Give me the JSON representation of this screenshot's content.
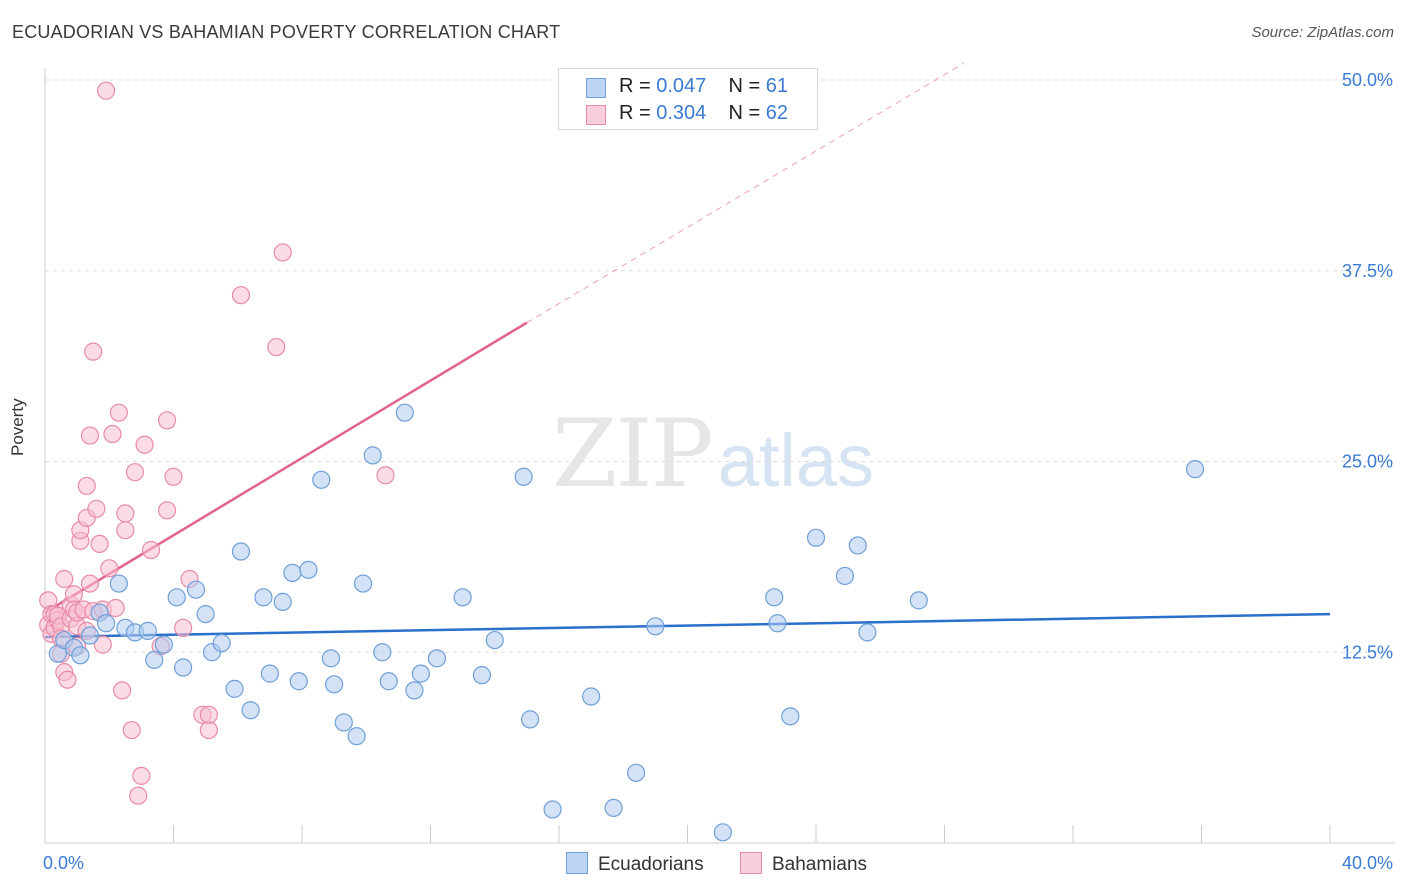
{
  "title": "ECUADORIAN VS BAHAMIAN POVERTY CORRELATION CHART",
  "source": "Source: ZipAtlas.com",
  "watermark": {
    "part1": "ZIP",
    "part2": "atlas"
  },
  "legend": [
    {
      "r_label": "R =",
      "r_value": "0.047",
      "n_label": "N =",
      "n_value": "61"
    },
    {
      "r_label": "R =",
      "r_value": "0.304",
      "n_label": "N =",
      "n_value": "62"
    }
  ],
  "bottom_legend": {
    "series1": "Ecuadorians",
    "series2": "Bahamians"
  },
  "colors": {
    "blue_fill": "#aecbf0",
    "blue_stroke": "#6f9fd8",
    "blue_line": "#2a6fc9",
    "pink_fill": "#f8c0d0",
    "pink_stroke": "#e88aa8",
    "pink_line": "#e2638d",
    "tick_text": "#3a7bd5",
    "grid": "#dddddd"
  },
  "chart_data": {
    "type": "scatter",
    "title": "ECUADORIAN VS BAHAMIAN POVERTY CORRELATION CHART",
    "xlabel": "",
    "ylabel": "Poverty",
    "xlim": [
      0,
      40
    ],
    "ylim": [
      0,
      50
    ],
    "x_tick_labels": [
      "0.0%",
      "40.0%"
    ],
    "y_ticks": [
      12.5,
      25.0,
      37.5,
      50.0
    ],
    "y_tick_labels": [
      "12.5%",
      "25.0%",
      "37.5%",
      "50.0%"
    ],
    "series": [
      {
        "name": "Ecuadorians",
        "r": 0.047,
        "n": 61,
        "trend": {
          "x": [
            0,
            40
          ],
          "y": [
            13.5,
            15.0
          ],
          "dashed_extension": false
        },
        "points": [
          [
            0.4,
            12.4
          ],
          [
            0.6,
            13.3
          ],
          [
            0.9,
            12.8
          ],
          [
            1.1,
            12.3
          ],
          [
            1.4,
            13.6
          ],
          [
            1.7,
            15.1
          ],
          [
            1.9,
            14.4
          ],
          [
            2.3,
            17.0
          ],
          [
            2.5,
            14.1
          ],
          [
            2.8,
            13.8
          ],
          [
            3.2,
            13.9
          ],
          [
            3.4,
            12.0
          ],
          [
            3.7,
            13.0
          ],
          [
            4.1,
            16.1
          ],
          [
            4.3,
            11.5
          ],
          [
            4.7,
            16.6
          ],
          [
            5.0,
            15.0
          ],
          [
            5.2,
            12.5
          ],
          [
            5.5,
            13.1
          ],
          [
            5.9,
            10.1
          ],
          [
            6.1,
            19.1
          ],
          [
            6.4,
            8.7
          ],
          [
            6.8,
            16.1
          ],
          [
            7.0,
            11.1
          ],
          [
            7.4,
            15.8
          ],
          [
            7.7,
            17.7
          ],
          [
            7.9,
            10.6
          ],
          [
            8.2,
            17.9
          ],
          [
            8.6,
            23.8
          ],
          [
            8.9,
            12.1
          ],
          [
            9.0,
            10.4
          ],
          [
            9.3,
            7.9
          ],
          [
            9.7,
            7.0
          ],
          [
            9.9,
            17.0
          ],
          [
            10.2,
            25.4
          ],
          [
            10.5,
            12.5
          ],
          [
            10.7,
            10.6
          ],
          [
            11.2,
            28.2
          ],
          [
            11.5,
            10.0
          ],
          [
            11.7,
            11.1
          ],
          [
            12.2,
            12.1
          ],
          [
            13.0,
            16.1
          ],
          [
            13.6,
            11.0
          ],
          [
            14.0,
            13.3
          ],
          [
            14.9,
            24.0
          ],
          [
            15.1,
            8.1
          ],
          [
            15.8,
            2.2
          ],
          [
            17.0,
            9.6
          ],
          [
            17.7,
            2.3
          ],
          [
            18.4,
            4.6
          ],
          [
            19.0,
            14.2
          ],
          [
            21.1,
            0.7
          ],
          [
            22.7,
            16.1
          ],
          [
            22.8,
            14.4
          ],
          [
            23.2,
            8.3
          ],
          [
            24.0,
            20.0
          ],
          [
            24.9,
            17.5
          ],
          [
            25.3,
            19.5
          ],
          [
            25.6,
            13.8
          ],
          [
            27.2,
            15.9
          ],
          [
            35.8,
            24.5
          ]
        ]
      },
      {
        "name": "Bahamians",
        "r": 0.304,
        "n": 62,
        "trend": {
          "x": [
            0,
            15
          ],
          "y": [
            15.1,
            34.1
          ],
          "dashed_extension": true,
          "dashed_to": {
            "x": 28.6,
            "y": 51.1
          }
        },
        "points": [
          [
            0.1,
            14.3
          ],
          [
            0.1,
            15.9
          ],
          [
            0.2,
            15.0
          ],
          [
            0.2,
            13.7
          ],
          [
            0.3,
            14.1
          ],
          [
            0.3,
            15.0
          ],
          [
            0.4,
            14.6
          ],
          [
            0.4,
            14.9
          ],
          [
            0.5,
            14.2
          ],
          [
            0.5,
            13.4
          ],
          [
            0.5,
            12.4
          ],
          [
            0.6,
            17.3
          ],
          [
            0.6,
            11.2
          ],
          [
            0.7,
            10.7
          ],
          [
            0.8,
            15.6
          ],
          [
            0.8,
            14.7
          ],
          [
            0.9,
            16.3
          ],
          [
            0.9,
            15.3
          ],
          [
            1.0,
            14.2
          ],
          [
            1.0,
            15.1
          ],
          [
            1.0,
            12.9
          ],
          [
            1.1,
            19.8
          ],
          [
            1.1,
            20.5
          ],
          [
            1.2,
            15.3
          ],
          [
            1.3,
            13.9
          ],
          [
            1.3,
            21.3
          ],
          [
            1.3,
            23.4
          ],
          [
            1.4,
            26.7
          ],
          [
            1.4,
            17.0
          ],
          [
            1.5,
            32.2
          ],
          [
            1.5,
            15.2
          ],
          [
            1.6,
            21.9
          ],
          [
            1.7,
            19.6
          ],
          [
            1.8,
            13.0
          ],
          [
            1.8,
            15.3
          ],
          [
            1.9,
            49.3
          ],
          [
            2.0,
            18.0
          ],
          [
            2.1,
            26.8
          ],
          [
            2.2,
            15.4
          ],
          [
            2.3,
            28.2
          ],
          [
            2.4,
            10.0
          ],
          [
            2.5,
            21.6
          ],
          [
            2.5,
            20.5
          ],
          [
            2.7,
            7.4
          ],
          [
            2.8,
            24.3
          ],
          [
            2.9,
            3.1
          ],
          [
            3.0,
            4.4
          ],
          [
            3.1,
            26.1
          ],
          [
            3.3,
            19.2
          ],
          [
            3.6,
            12.9
          ],
          [
            3.8,
            27.7
          ],
          [
            3.8,
            21.8
          ],
          [
            4.0,
            24.0
          ],
          [
            4.3,
            14.1
          ],
          [
            4.5,
            17.3
          ],
          [
            4.9,
            8.4
          ],
          [
            5.1,
            7.4
          ],
          [
            5.1,
            8.4
          ],
          [
            6.1,
            35.9
          ],
          [
            7.2,
            32.5
          ],
          [
            7.4,
            38.7
          ],
          [
            10.6,
            24.1
          ]
        ]
      }
    ]
  }
}
